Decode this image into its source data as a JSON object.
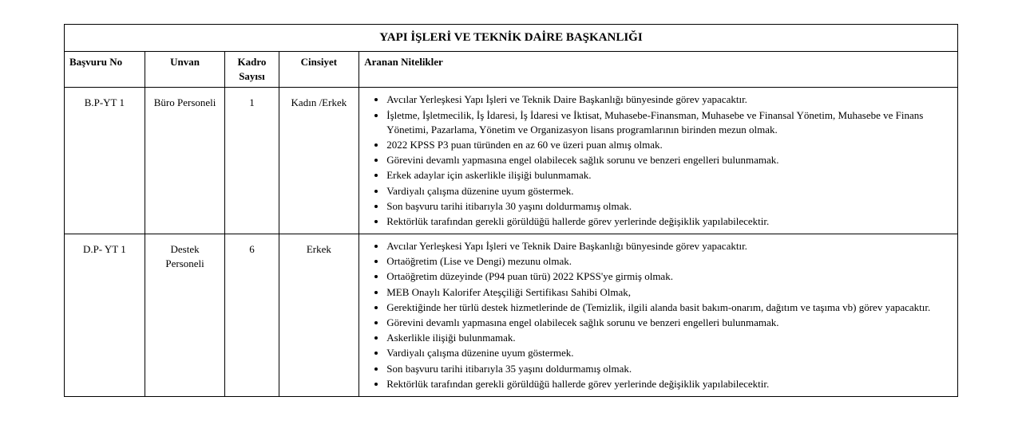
{
  "table": {
    "title": "YAPI İŞLERİ VE TEKNİK DAİRE BAŞKANLIĞI",
    "columns": {
      "basvuru": "Başvuru No",
      "unvan": "Unvan",
      "kadro": "Kadro Sayısı",
      "cinsiyet": "Cinsiyet",
      "nitelik": "Aranan Nitelikler"
    },
    "rows": [
      {
        "basvuru": "B.P-YT 1",
        "unvan": "Büro Personeli",
        "kadro": "1",
        "cinsiyet": "Kadın /Erkek",
        "nitelik": [
          "Avcılar Yerleşkesi Yapı İşleri ve Teknik Daire Başkanlığı bünyesinde görev yapacaktır.",
          "İşletme, İşletmecilik, İş İdaresi, İş İdaresi ve İktisat, Muhasebe-Finansman, Muhasebe ve Finansal Yönetim, Muhasebe ve Finans Yönetimi, Pazarlama, Yönetim ve Organizasyon lisans programlarının birinden mezun olmak.",
          "2022 KPSS P3 puan türünden en az 60 ve üzeri puan almış olmak.",
          "Görevini devamlı yapmasına engel olabilecek sağlık sorunu ve benzeri engelleri bulunmamak.",
          "Erkek adaylar için askerlikle ilişiği bulunmamak.",
          "Vardiyalı çalışma düzenine uyum göstermek.",
          "Son başvuru tarihi itibarıyla 30 yaşını doldurmamış olmak.",
          "Rektörlük tarafından gerekli görüldüğü hallerde görev yerlerinde değişiklik yapılabilecektir."
        ]
      },
      {
        "basvuru": "D.P- YT 1",
        "unvan": "Destek Personeli",
        "kadro": "6",
        "cinsiyet": "Erkek",
        "nitelik": [
          "Avcılar Yerleşkesi Yapı İşleri ve Teknik Daire Başkanlığı bünyesinde görev yapacaktır.",
          "Ortaöğretim (Lise ve Dengi) mezunu olmak.",
          "Ortaöğretim düzeyinde (P94 puan türü) 2022 KPSS'ye girmiş olmak.",
          "MEB Onaylı Kalorifer Ateşçiliği Sertifikası Sahibi Olmak,",
          "Gerektiğinde her türlü destek hizmetlerinde de (Temizlik, ilgili alanda basit bakım-onarım, dağıtım ve taşıma vb) görev yapacaktır.",
          "Görevini devamlı yapmasına engel olabilecek sağlık sorunu ve benzeri engelleri bulunmamak.",
          "Askerlikle ilişiği bulunmamak.",
          "Vardiyalı çalışma düzenine uyum göstermek.",
          "Son başvuru tarihi itibarıyla 35 yaşını doldurmamış olmak.",
          "Rektörlük tarafından gerekli görüldüğü hallerde görev yerlerinde değişiklik yapılabilecektir."
        ]
      }
    ]
  }
}
